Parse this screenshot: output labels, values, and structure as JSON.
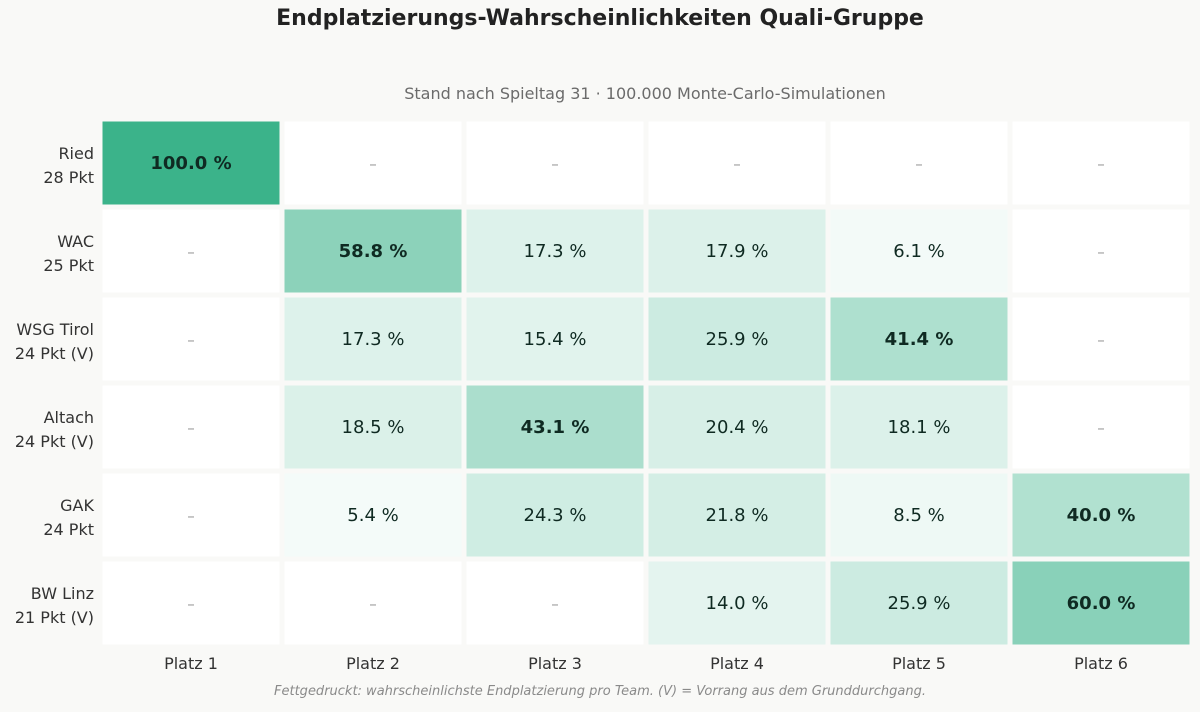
{
  "chart_data": {
    "type": "heatmap",
    "title": "Endplatzierungs-Wahrscheinlichkeiten Quali-Gruppe",
    "subtitle": "Stand nach Spieltag 31  ·  100.000 Monte-Carlo-Simulationen",
    "footnote": "Fettgedruckt: wahrscheinlichste Endplatzierung pro Team. (V) = Vorrang aus dem Grunddurchgang.",
    "columns": [
      "Platz 1",
      "Platz 2",
      "Platz 3",
      "Platz 4",
      "Platz 5",
      "Platz 6"
    ],
    "rows": [
      {
        "team": "Ried",
        "points": "28 Pkt"
      },
      {
        "team": "WAC",
        "points": "25 Pkt"
      },
      {
        "team": "WSG Tirol",
        "points": "24 Pkt (V)"
      },
      {
        "team": "Altach",
        "points": "24 Pkt (V)"
      },
      {
        "team": "GAK",
        "points": "24 Pkt"
      },
      {
        "team": "BW Linz",
        "points": "21 Pkt (V)"
      }
    ],
    "values": [
      [
        100.0,
        null,
        null,
        null,
        null,
        null
      ],
      [
        null,
        58.8,
        17.3,
        17.9,
        6.1,
        null
      ],
      [
        null,
        17.3,
        15.4,
        25.9,
        41.4,
        null
      ],
      [
        null,
        18.5,
        43.1,
        20.4,
        18.1,
        null
      ],
      [
        null,
        5.4,
        24.3,
        21.8,
        8.5,
        40.0
      ],
      [
        null,
        null,
        null,
        14.0,
        25.9,
        60.0
      ]
    ],
    "value_suffix": " %",
    "empty_symbol": "–",
    "colors": {
      "scale_max": "#3bb38a",
      "scale_min": "#ffffff",
      "text": "#0f2a22",
      "label_text": "#333333",
      "empty_text": "#9a9a9a",
      "grid_line": "#f9f9f7"
    }
  }
}
